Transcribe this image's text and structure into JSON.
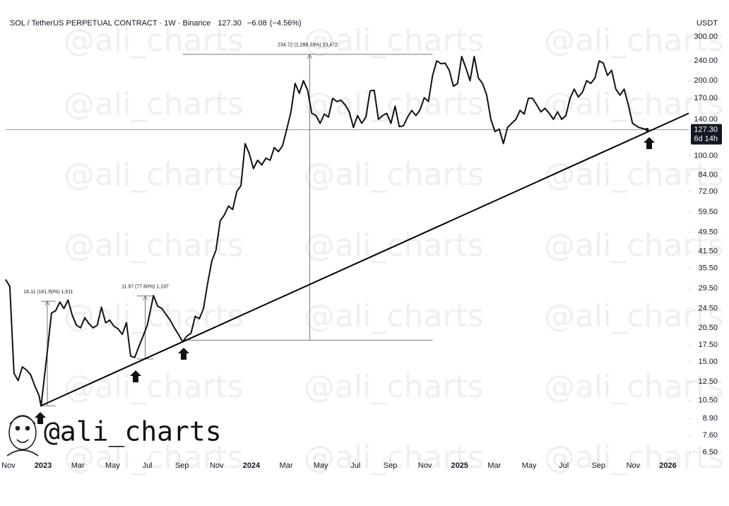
{
  "chart_data": {
    "type": "line",
    "title": "SOL / TetherUS PERPETUAL CONTRACT · 1W · Binance",
    "last_price": {
      "value": 127.3,
      "label": "127.30"
    },
    "change": {
      "value": -6.08,
      "label": "−6.08"
    },
    "change_pct": {
      "value": -4.56,
      "label": "(−4.56%)"
    },
    "countdown": "6d 14h",
    "y_unit": "USDT",
    "watermark": "@ali_charts",
    "log_scale": true,
    "color": "#111111",
    "xlim": [
      2022.82,
      2026.1
    ],
    "ylim": [
      6.1,
      346
    ],
    "xticks": [
      {
        "value": 2022.8333,
        "label": "Nov"
      },
      2023,
      {
        "value": 2023.1667,
        "label": "Mar"
      },
      {
        "value": 2023.3333,
        "label": "May"
      },
      {
        "value": 2023.5,
        "label": "Jul"
      },
      {
        "value": 2023.6667,
        "label": "Sep"
      },
      {
        "value": 2023.8333,
        "label": "Nov"
      },
      2024,
      {
        "value": 2024.1667,
        "label": "Mar"
      },
      {
        "value": 2024.3333,
        "label": "May"
      },
      {
        "value": 2024.5,
        "label": "Jul"
      },
      {
        "value": 2024.6667,
        "label": "Sep"
      },
      {
        "value": 2024.8333,
        "label": "Nov"
      },
      2025,
      {
        "value": 2025.1667,
        "label": "Mar"
      },
      {
        "value": 2025.3333,
        "label": "May"
      },
      {
        "value": 2025.5,
        "label": "Jul"
      },
      {
        "value": 2025.6667,
        "label": "Sep"
      },
      {
        "value": 2025.8333,
        "label": "Nov"
      },
      2026
    ],
    "yticks": [
      {
        "value": 300,
        "label": "300.00"
      },
      {
        "value": 240,
        "label": "240.00"
      },
      {
        "value": 200,
        "label": "200.00"
      },
      {
        "value": 170,
        "label": "170.00"
      },
      {
        "value": 140,
        "label": "140.00"
      },
      {
        "value": 100,
        "label": "100.00"
      },
      {
        "value": 84,
        "label": "84.00"
      },
      {
        "value": 72,
        "label": "72.00"
      },
      {
        "value": 59.5,
        "label": "59.50"
      },
      {
        "value": 49.5,
        "label": "49.50"
      },
      {
        "value": 41.5,
        "label": "41.50"
      },
      {
        "value": 35.5,
        "label": "35.50"
      },
      {
        "value": 29.5,
        "label": "29.50"
      },
      {
        "value": 24.5,
        "label": "24.50"
      },
      {
        "value": 20.5,
        "label": "20.50"
      },
      {
        "value": 17.5,
        "label": "17.50"
      },
      {
        "value": 15,
        "label": "15.00"
      },
      {
        "value": 12.5,
        "label": "12.50"
      },
      {
        "value": 10.5,
        "label": "10.50"
      },
      {
        "value": 8.9,
        "label": "8.90"
      },
      {
        "value": 7.6,
        "label": "7.60"
      },
      {
        "value": 6.5,
        "label": "6.50"
      }
    ],
    "x": [
      2022.82,
      2022.84,
      2022.86,
      2022.88,
      2022.9,
      2022.92,
      2022.94,
      2022.96,
      2022.98,
      2022.99,
      2023.02,
      2023.04,
      2023.06,
      2023.08,
      2023.1,
      2023.12,
      2023.14,
      2023.16,
      2023.18,
      2023.2,
      2023.22,
      2023.24,
      2023.26,
      2023.28,
      2023.3,
      2023.32,
      2023.34,
      2023.36,
      2023.38,
      2023.4,
      2023.42,
      2023.44,
      2023.46,
      2023.48,
      2023.5,
      2023.53,
      2023.55,
      2023.57,
      2023.59,
      2023.61,
      2023.63,
      2023.65,
      2023.67,
      2023.69,
      2023.71,
      2023.73,
      2023.75,
      2023.77,
      2023.79,
      2023.81,
      2023.83,
      2023.85,
      2023.87,
      2023.89,
      2023.91,
      2023.93,
      2023.95,
      2023.97,
      2023.99,
      2024.01,
      2024.03,
      2024.05,
      2024.07,
      2024.09,
      2024.11,
      2024.13,
      2024.15,
      2024.17,
      2024.19,
      2024.21,
      2024.23,
      2024.25,
      2024.27,
      2024.29,
      2024.31,
      2024.33,
      2024.35,
      2024.37,
      2024.39,
      2024.41,
      2024.43,
      2024.45,
      2024.47,
      2024.49,
      2024.51,
      2024.53,
      2024.55,
      2024.57,
      2024.59,
      2024.61,
      2024.63,
      2024.65,
      2024.67,
      2024.69,
      2024.71,
      2024.73,
      2024.75,
      2024.77,
      2024.79,
      2024.81,
      2024.83,
      2024.85,
      2024.87,
      2024.89,
      2024.91,
      2024.93,
      2024.95,
      2024.97,
      2024.99,
      2025.01,
      2025.03,
      2025.05,
      2025.07,
      2025.09,
      2025.11,
      2025.13,
      2025.15,
      2025.17,
      2025.19,
      2025.21,
      2025.23,
      2025.25,
      2025.27,
      2025.29,
      2025.31,
      2025.33,
      2025.35,
      2025.37,
      2025.39,
      2025.41,
      2025.43,
      2025.45,
      2025.47,
      2025.49,
      2025.51,
      2025.53,
      2025.55,
      2025.57,
      2025.59,
      2025.61,
      2025.63,
      2025.65,
      2025.67,
      2025.69,
      2025.71,
      2025.73,
      2025.75,
      2025.77,
      2025.79,
      2025.81,
      2025.83,
      2025.86,
      2025.9
    ],
    "values": [
      32,
      30,
      13.5,
      12.6,
      14.3,
      13.9,
      13.3,
      12,
      11,
      9.96,
      16.5,
      23.5,
      24,
      26,
      24.5,
      26.5,
      23,
      21,
      20.5,
      22.5,
      21.3,
      20.5,
      21,
      24.8,
      21.5,
      22,
      20.8,
      20.3,
      19.3,
      21.5,
      15.8,
      15.6,
      17.3,
      19,
      21,
      27.6,
      25,
      24.5,
      23.2,
      22,
      20.5,
      19.3,
      18,
      19,
      19.5,
      22.8,
      22.3,
      24.5,
      31,
      38,
      42,
      55,
      58,
      63,
      61,
      72,
      76,
      112,
      102,
      89,
      96,
      92,
      98,
      96,
      108,
      104,
      110,
      128,
      150,
      195,
      178,
      200,
      183,
      148,
      145,
      135,
      147,
      143,
      170,
      165,
      167,
      160,
      150,
      130,
      145,
      135,
      143,
      182,
      183,
      140,
      145,
      148,
      135,
      158,
      131,
      132,
      143,
      152,
      145,
      153,
      171,
      165,
      210,
      240,
      234,
      235,
      220,
      190,
      195,
      250,
      225,
      200,
      250,
      205,
      195,
      175,
      140,
      125,
      128,
      112,
      130,
      135,
      140,
      152,
      147,
      170,
      170,
      160,
      150,
      155,
      148,
      140,
      150,
      140,
      145,
      170,
      185,
      172,
      180,
      200,
      195,
      205,
      240,
      235,
      210,
      220,
      185,
      175,
      185,
      160,
      135,
      130,
      127.3
    ],
    "trendline": {
      "x": [
        2022.99,
        2026.1
      ],
      "values": [
        10,
        148
      ]
    },
    "measurements": [
      {
        "label": "16.11 (161.50%) 1,611",
        "x": 2023.02,
        "x_start": 2022.99,
        "x_end": 2023.06,
        "low": 10,
        "high": 26.2
      },
      {
        "label": "11.97 (77.60%) 1,197",
        "x": 2023.49,
        "x_start": 2023.45,
        "x_end": 2023.53,
        "low": 15.4,
        "high": 27.5
      },
      {
        "label": "234.72 (1,288.33%) 23,472",
        "x": 2024.28,
        "x_start": 2023.67,
        "x_end": 2024.87,
        "low": 18.3,
        "high": 255
      }
    ]
  }
}
